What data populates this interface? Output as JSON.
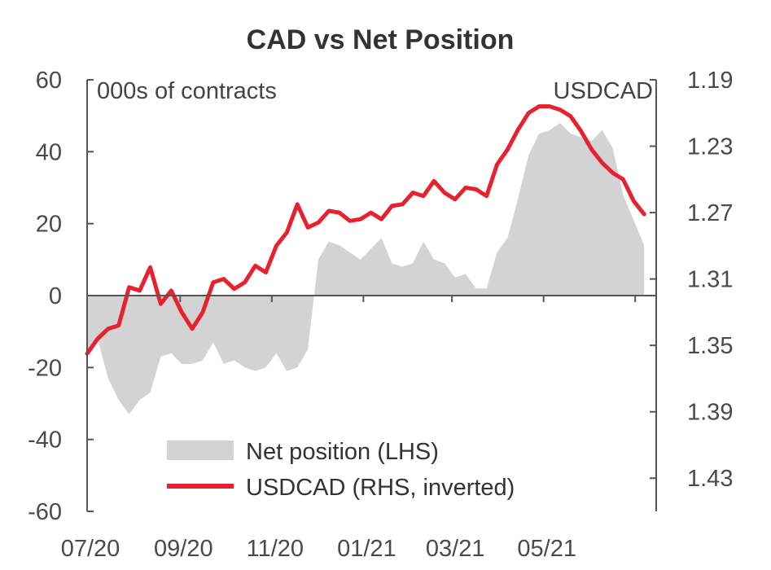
{
  "chart_data": {
    "type": "area",
    "title": "CAD vs Net Position",
    "left_axis_note": "000s of contracts",
    "right_axis_note": "USDCAD",
    "x_tick_labels": [
      "07/20",
      "09/20",
      "11/20",
      "01/21",
      "03/21",
      "05/21"
    ],
    "x_domain": [
      "2020-07-01",
      "2021-07-15"
    ],
    "y_left": {
      "ylim": [
        -60,
        60
      ],
      "ticks": [
        60,
        40,
        20,
        0,
        -20,
        -40,
        -60
      ],
      "tick_labels": [
        "60",
        "40",
        "20",
        "0",
        "-20",
        "-40",
        "-60"
      ]
    },
    "y_right": {
      "inverted": true,
      "ylim": [
        1.19,
        1.45
      ],
      "ticks": [
        1.19,
        1.23,
        1.27,
        1.31,
        1.35,
        1.39,
        1.43
      ],
      "tick_labels": [
        "1.19",
        "1.23",
        "1.27",
        "1.31",
        "1.35",
        "1.39",
        "1.43"
      ]
    },
    "legend_position": "bottom-center",
    "series": [
      {
        "name": "Net position (LHS)",
        "kind": "area",
        "axis": "left",
        "color": "#d3d3d3",
        "points": [
          [
            "2020-07-01",
            -16
          ],
          [
            "2020-07-08",
            -12
          ],
          [
            "2020-07-15",
            -23
          ],
          [
            "2020-07-22",
            -29
          ],
          [
            "2020-07-29",
            -33
          ],
          [
            "2020-08-05",
            -29
          ],
          [
            "2020-08-12",
            -27
          ],
          [
            "2020-08-19",
            -17
          ],
          [
            "2020-08-26",
            -16
          ],
          [
            "2020-09-02",
            -19
          ],
          [
            "2020-09-09",
            -19
          ],
          [
            "2020-09-16",
            -18
          ],
          [
            "2020-09-23",
            -13
          ],
          [
            "2020-09-30",
            -19
          ],
          [
            "2020-10-07",
            -18
          ],
          [
            "2020-10-14",
            -20
          ],
          [
            "2020-10-21",
            -21
          ],
          [
            "2020-10-28",
            -20
          ],
          [
            "2020-11-04",
            -16
          ],
          [
            "2020-11-11",
            -21
          ],
          [
            "2020-11-18",
            -20
          ],
          [
            "2020-11-25",
            -15
          ],
          [
            "2020-12-02",
            10
          ],
          [
            "2020-12-09",
            15
          ],
          [
            "2020-12-16",
            14
          ],
          [
            "2020-12-23",
            12
          ],
          [
            "2020-12-30",
            10
          ],
          [
            "2021-01-06",
            13
          ],
          [
            "2021-01-13",
            16
          ],
          [
            "2021-01-20",
            9
          ],
          [
            "2021-01-27",
            8
          ],
          [
            "2021-02-03",
            9
          ],
          [
            "2021-02-10",
            15
          ],
          [
            "2021-02-17",
            10
          ],
          [
            "2021-02-24",
            9
          ],
          [
            "2021-03-03",
            5
          ],
          [
            "2021-03-10",
            6
          ],
          [
            "2021-03-17",
            2
          ],
          [
            "2021-03-24",
            2
          ],
          [
            "2021-03-31",
            12
          ],
          [
            "2021-04-07",
            16
          ],
          [
            "2021-04-14",
            27
          ],
          [
            "2021-04-21",
            39
          ],
          [
            "2021-04-28",
            45
          ],
          [
            "2021-05-05",
            46
          ],
          [
            "2021-05-12",
            48
          ],
          [
            "2021-05-19",
            45
          ],
          [
            "2021-05-26",
            44
          ],
          [
            "2021-06-02",
            43
          ],
          [
            "2021-06-09",
            46
          ],
          [
            "2021-06-16",
            41
          ],
          [
            "2021-06-23",
            28
          ],
          [
            "2021-06-30",
            21
          ],
          [
            "2021-07-07",
            14
          ]
        ]
      },
      {
        "name": "USDCAD (RHS, inverted)",
        "kind": "line",
        "axis": "right",
        "color": "#e8212f",
        "points": [
          [
            "2020-07-01",
            1.355
          ],
          [
            "2020-07-08",
            1.346
          ],
          [
            "2020-07-15",
            1.34
          ],
          [
            "2020-07-22",
            1.338
          ],
          [
            "2020-07-29",
            1.315
          ],
          [
            "2020-08-05",
            1.317
          ],
          [
            "2020-08-12",
            1.303
          ],
          [
            "2020-08-19",
            1.325
          ],
          [
            "2020-08-26",
            1.317
          ],
          [
            "2020-09-02",
            1.33
          ],
          [
            "2020-09-09",
            1.34
          ],
          [
            "2020-09-16",
            1.33
          ],
          [
            "2020-09-23",
            1.312
          ],
          [
            "2020-09-30",
            1.31
          ],
          [
            "2020-10-07",
            1.316
          ],
          [
            "2020-10-14",
            1.312
          ],
          [
            "2020-10-21",
            1.302
          ],
          [
            "2020-10-28",
            1.306
          ],
          [
            "2020-11-04",
            1.29
          ],
          [
            "2020-11-11",
            1.282
          ],
          [
            "2020-11-18",
            1.265
          ],
          [
            "2020-11-25",
            1.279
          ],
          [
            "2020-12-02",
            1.276
          ],
          [
            "2020-12-09",
            1.269
          ],
          [
            "2020-12-16",
            1.27
          ],
          [
            "2020-12-23",
            1.275
          ],
          [
            "2020-12-30",
            1.274
          ],
          [
            "2021-01-06",
            1.27
          ],
          [
            "2021-01-13",
            1.274
          ],
          [
            "2021-01-20",
            1.266
          ],
          [
            "2021-01-27",
            1.265
          ],
          [
            "2021-02-03",
            1.258
          ],
          [
            "2021-02-10",
            1.26
          ],
          [
            "2021-02-17",
            1.251
          ],
          [
            "2021-02-24",
            1.258
          ],
          [
            "2021-03-03",
            1.262
          ],
          [
            "2021-03-10",
            1.255
          ],
          [
            "2021-03-17",
            1.256
          ],
          [
            "2021-03-24",
            1.26
          ],
          [
            "2021-03-31",
            1.241
          ],
          [
            "2021-04-07",
            1.232
          ],
          [
            "2021-04-14",
            1.22
          ],
          [
            "2021-04-21",
            1.21
          ],
          [
            "2021-04-28",
            1.206
          ],
          [
            "2021-05-05",
            1.206
          ],
          [
            "2021-05-12",
            1.208
          ],
          [
            "2021-05-19",
            1.212
          ],
          [
            "2021-05-26",
            1.221
          ],
          [
            "2021-06-02",
            1.232
          ],
          [
            "2021-06-09",
            1.24
          ],
          [
            "2021-06-16",
            1.246
          ],
          [
            "2021-06-23",
            1.25
          ],
          [
            "2021-06-30",
            1.263
          ],
          [
            "2021-07-07",
            1.271
          ]
        ]
      }
    ]
  }
}
